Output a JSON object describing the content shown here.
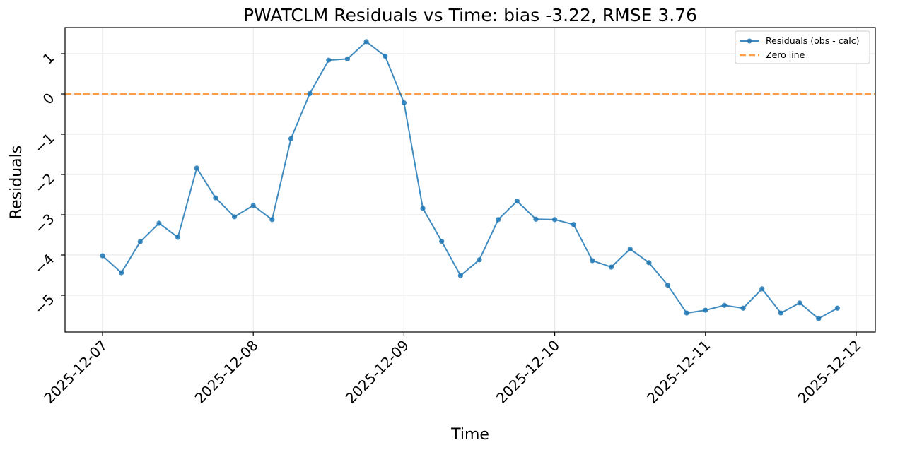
{
  "chart_data": {
    "type": "line",
    "title": "PWATCLM Residuals vs Time: bias -3.22, RMSE 3.76",
    "xlabel": "Time",
    "ylabel": "Residuals",
    "x_tick_labels": [
      "2025-12-07",
      "2025-12-08",
      "2025-12-09",
      "2025-12-10",
      "2025-12-11",
      "2025-12-12"
    ],
    "y_tick_labels": [
      "1",
      "0",
      "−1",
      "−2",
      "−3",
      "−4",
      "−5"
    ],
    "y_tick_values": [
      1,
      0,
      -1,
      -2,
      -3,
      -4,
      -5
    ],
    "ylim": [
      -5.92,
      1.66
    ],
    "xlim_days": [
      -0.25,
      5.12
    ],
    "grid": true,
    "legend_position": "upper right",
    "x": [
      "2025-12-07 00:00",
      "2025-12-07 03:00",
      "2025-12-07 06:00",
      "2025-12-07 09:00",
      "2025-12-07 12:00",
      "2025-12-07 15:00",
      "2025-12-07 18:00",
      "2025-12-07 21:00",
      "2025-12-08 00:00",
      "2025-12-08 03:00",
      "2025-12-08 06:00",
      "2025-12-08 09:00",
      "2025-12-08 12:00",
      "2025-12-08 15:00",
      "2025-12-08 18:00",
      "2025-12-08 21:00",
      "2025-12-09 00:00",
      "2025-12-09 03:00",
      "2025-12-09 06:00",
      "2025-12-09 09:00",
      "2025-12-09 12:00",
      "2025-12-09 15:00",
      "2025-12-09 18:00",
      "2025-12-09 21:00",
      "2025-12-10 00:00",
      "2025-12-10 03:00",
      "2025-12-10 06:00",
      "2025-12-10 09:00",
      "2025-12-10 12:00",
      "2025-12-10 15:00",
      "2025-12-10 18:00",
      "2025-12-10 21:00",
      "2025-12-11 00:00",
      "2025-12-11 03:00",
      "2025-12-11 06:00",
      "2025-12-11 09:00",
      "2025-12-11 12:00",
      "2025-12-11 15:00",
      "2025-12-11 18:00",
      "2025-12-11 21:00"
    ],
    "series": [
      {
        "name": "Residuals (obs - calc)",
        "color": "#1f77b4",
        "style": "line-with-markers",
        "values": [
          -4.02,
          -4.44,
          -3.67,
          -3.21,
          -3.56,
          -1.84,
          -2.58,
          -3.05,
          -2.77,
          -3.12,
          -1.11,
          0.01,
          0.84,
          0.87,
          1.3,
          0.94,
          -0.22,
          -2.84,
          -3.66,
          -4.51,
          -4.12,
          -3.12,
          -2.66,
          -3.11,
          -3.12,
          -3.24,
          -4.14,
          -4.3,
          -3.85,
          -4.19,
          -4.75,
          -5.44,
          -5.37,
          -5.25,
          -5.32,
          -4.84,
          -5.44,
          -5.19,
          -5.58,
          -5.32
        ]
      },
      {
        "name": "Zero line",
        "color": "#ff7f0e",
        "style": "dashed",
        "values": [
          0
        ]
      }
    ]
  },
  "legend": {
    "items": [
      {
        "label": "Residuals (obs - calc)",
        "color": "#1f77b4"
      },
      {
        "label": "Zero line",
        "color": "#ff7f0e"
      }
    ]
  }
}
